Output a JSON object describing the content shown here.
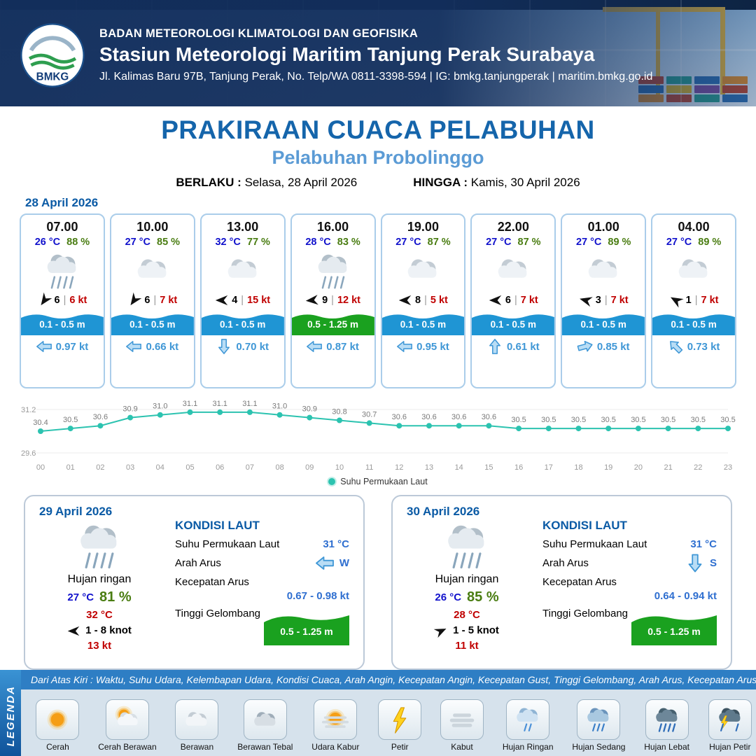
{
  "header": {
    "logo_text": "BMKG",
    "org_line": "BADAN METEOROLOGI KLIMATOLOGI DAN GEOFISIKA",
    "station": "Stasiun Meteorologi Maritim Tanjung Perak Surabaya",
    "address": "Jl. Kalimas Baru 97B, Tanjung Perak, No. Telp/WA 0811-3398-594 | IG: bmkg.tanjungperak | maritim.bmkg.go.id"
  },
  "title": {
    "main": "PRAKIRAAN CUACA PELABUHAN",
    "subtitle": "Pelabuhan Probolinggo",
    "berlaku_label": "BERLAKU :",
    "berlaku_value": "Selasa, 28 April 2026",
    "hingga_label": "HINGGA :",
    "hingga_value": "Kamis, 30 April 2026"
  },
  "forecast": {
    "date_label": "28 April 2026",
    "cards": [
      {
        "time": "07.00",
        "temp": "26 °C",
        "humidity": "88 %",
        "icon": "rain-gray",
        "wind_dir_deg": 125,
        "wind_value": "6",
        "wind_speed": "6 kt",
        "wave": "0.1 - 0.5 m",
        "wave_color": "blue",
        "current_dir_deg": 180,
        "current_speed": "0.97 kt"
      },
      {
        "time": "10.00",
        "temp": "27 °C",
        "humidity": "85 %",
        "icon": "cloudy",
        "wind_dir_deg": 125,
        "wind_value": "6",
        "wind_speed": "7 kt",
        "wave": "0.1 - 0.5 m",
        "wave_color": "blue",
        "current_dir_deg": 180,
        "current_speed": "0.66 kt"
      },
      {
        "time": "13.00",
        "temp": "32 °C",
        "humidity": "77 %",
        "icon": "cloudy",
        "wind_dir_deg": 180,
        "wind_value": "4",
        "wind_speed": "15 kt",
        "wave": "0.1 - 0.5 m",
        "wave_color": "blue",
        "current_dir_deg": 90,
        "current_speed": "0.70 kt"
      },
      {
        "time": "16.00",
        "temp": "28 °C",
        "humidity": "83 %",
        "icon": "rain-gray",
        "wind_dir_deg": 175,
        "wind_value": "9",
        "wind_speed": "12 kt",
        "wave": "0.5 - 1.25 m",
        "wave_color": "green",
        "current_dir_deg": 180,
        "current_speed": "0.87 kt"
      },
      {
        "time": "19.00",
        "temp": "27 °C",
        "humidity": "87 %",
        "icon": "cloudy",
        "wind_dir_deg": 180,
        "wind_value": "8",
        "wind_speed": "5 kt",
        "wave": "0.1 - 0.5 m",
        "wave_color": "blue",
        "current_dir_deg": 180,
        "current_speed": "0.95 kt"
      },
      {
        "time": "22.00",
        "temp": "27 °C",
        "humidity": "87 %",
        "icon": "cloudy",
        "wind_dir_deg": 180,
        "wind_value": "6",
        "wind_speed": "7 kt",
        "wave": "0.1 - 0.5 m",
        "wave_color": "blue",
        "current_dir_deg": 270,
        "current_speed": "0.61 kt"
      },
      {
        "time": "01.00",
        "temp": "27 °C",
        "humidity": "89 %",
        "icon": "cloudy",
        "wind_dir_deg": 195,
        "wind_value": "3",
        "wind_speed": "7 kt",
        "wave": "0.1 - 0.5 m",
        "wave_color": "blue",
        "current_dir_deg": 345,
        "current_speed": "0.85 kt"
      },
      {
        "time": "04.00",
        "temp": "27 °C",
        "humidity": "89 %",
        "icon": "cloudy",
        "wind_dir_deg": 210,
        "wind_value": "1",
        "wind_speed": "7 kt",
        "wave": "0.1 - 0.5 m",
        "wave_color": "blue",
        "current_dir_deg": 225,
        "current_speed": "0.73 kt"
      }
    ]
  },
  "chart_data": {
    "type": "line",
    "series_name": "Suhu Permukaan Laut",
    "x": [
      "00",
      "01",
      "02",
      "03",
      "04",
      "05",
      "06",
      "07",
      "08",
      "09",
      "10",
      "11",
      "12",
      "13",
      "14",
      "15",
      "16",
      "17",
      "18",
      "19",
      "20",
      "21",
      "22",
      "23"
    ],
    "values": [
      30.4,
      30.5,
      30.6,
      30.9,
      31.0,
      31.1,
      31.1,
      31.1,
      31.0,
      30.9,
      30.8,
      30.7,
      30.6,
      30.6,
      30.6,
      30.6,
      30.5,
      30.5,
      30.5,
      30.5,
      30.5,
      30.5,
      30.5,
      30.5
    ],
    "ylim": [
      29.6,
      31.2
    ],
    "y_tick_labels": [
      "31.2",
      "29.6"
    ],
    "line_color": "#2cc3b0",
    "grid": false,
    "legend_position": "bottom"
  },
  "days": [
    {
      "date": "29 April 2026",
      "icon": "rain-gray",
      "condition": "Hujan ringan",
      "temp_min": "27 °C",
      "humidity": "81 %",
      "temp_max": "32 °C",
      "wind_dir_deg": 180,
      "wind_range": "1 - 8 knot",
      "gust": "13 kt",
      "sea_heading": "KONDISI LAUT",
      "sst_label": "Suhu Permukaan Laut",
      "sst_value": "31 °C",
      "current_dir_label": "Arah Arus",
      "current_dir_deg": 180,
      "current_dir_text": "W",
      "current_speed_label": "Kecepatan Arus",
      "current_speed_value": "0.67 - 0.98 kt",
      "wave_label": "Tinggi Gelombang",
      "wave_value": "0.5 - 1.25 m"
    },
    {
      "date": "30 April 2026",
      "icon": "rain-gray",
      "condition": "Hujan ringan",
      "temp_min": "26 °C",
      "humidity": "85 %",
      "temp_max": "28 °C",
      "wind_dir_deg": 335,
      "wind_range": "1 - 5 knot",
      "gust": "11 kt",
      "sea_heading": "KONDISI LAUT",
      "sst_label": "Suhu Permukaan Laut",
      "sst_value": "31 °C",
      "current_dir_label": "Arah Arus",
      "current_dir_deg": 90,
      "current_dir_text": "S",
      "current_speed_label": "Kecepatan Arus",
      "current_speed_value": "0.64 - 0.94 kt",
      "wave_label": "Tinggi Gelombang",
      "wave_value": "0.5 - 1.25 m"
    }
  ],
  "legend": {
    "title": "LEGENDA",
    "note": "Dari Atas Kiri : Waktu, Suhu Udara, Kelembapan Udara, Kondisi Cuaca, Arah Angin, Kecepatan Angin, Kecepatan Gust, Tinggi Gelombang, Arah Arus, Kecepatan Arus",
    "items": [
      {
        "label": "Cerah",
        "icon": "sun"
      },
      {
        "label": "Cerah Berawan",
        "icon": "sun-cloud"
      },
      {
        "label": "Berawan",
        "icon": "cloud"
      },
      {
        "label": "Berawan Tebal",
        "icon": "cloud-thick"
      },
      {
        "label": "Udara Kabur",
        "icon": "haze"
      },
      {
        "label": "Petir",
        "icon": "lightning"
      },
      {
        "label": "Kabut",
        "icon": "fog"
      },
      {
        "label": "Hujan Ringan",
        "icon": "rain-light"
      },
      {
        "label": "Hujan Sedang",
        "icon": "rain-medium"
      },
      {
        "label": "Hujan Lebat",
        "icon": "rain-heavy"
      },
      {
        "label": "Hujan Petir",
        "icon": "rain-thunder"
      }
    ]
  },
  "colors": {
    "header_navy": "#16386b",
    "title_blue": "#1565ab",
    "subtitle_blue": "#5b9bd5",
    "temp_blue": "#1111cc",
    "humidity_green": "#4a7d12",
    "speed_red": "#c00000",
    "wave_blue": "#1f95d4",
    "wave_green": "#1aa11f",
    "current_blue": "#3f97d6",
    "chart_teal": "#2cc3b0"
  }
}
